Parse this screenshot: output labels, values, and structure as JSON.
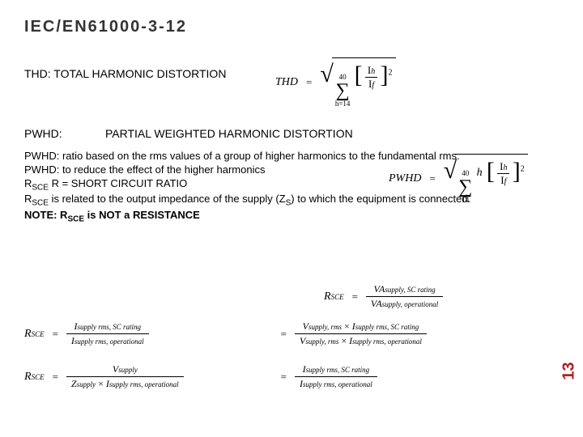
{
  "title": "IEC/EN61000-3-12",
  "thd_label": "THD: TOTAL HARMONIC DISTORTION",
  "pwhd_short": "PWHD:",
  "pwhd_long": "PARTIAL WEIGHTED HARMONIC DISTORTION",
  "body": {
    "line1": "PWHD: ratio based on the rms values of a group of higher harmonics to the fundamental rms.",
    "line2": "PWHD: to reduce the effect of the higher harmonics",
    "line3a": "R",
    "line3b": " R = SHORT CIRCUIT RATIO",
    "line4a": "R",
    "line4b": " is related to the output impedance of the supply (Z",
    "line4c": ") to which the equipment is connected.",
    "note_label": "NOTE:  R",
    "note_tail": "  is NOT a RESISTANCE",
    "sce": "SCE",
    "s": "S"
  },
  "thd_formula": {
    "lhs": "THD",
    "sum_top": "40",
    "sum_bot": "h=14",
    "frac_num": "I",
    "frac_num_sub": "h",
    "frac_den": "I",
    "frac_den_sub": "f"
  },
  "pwhd_formula": {
    "lhs": "PWHD",
    "sum_top": "40",
    "sum_bot": "14",
    "coef": "h",
    "frac_num": "I",
    "frac_num_sub": "h",
    "frac_den": "I",
    "frac_den_sub": "f"
  },
  "rsce_left": {
    "lhs": "R",
    "lhs_sub": "SCE",
    "r1_num": "I",
    "r1_num_sub": "supply rms, SC rating",
    "r1_den": "I",
    "r1_den_sub": "supply rms, operational",
    "r2_num": "V",
    "r2_num_sub": "supply",
    "r2_den_a": "Z",
    "r2_den_a_sub": "supply",
    "r2_den_b": "I",
    "r2_den_b_sub": "supply rms, operational"
  },
  "rsce_right": {
    "lhs": "R",
    "lhs_sub": "SCE",
    "r1_num": "VA",
    "r1_num_sub": "supply, SC rating",
    "r1_den": "VA",
    "r1_den_sub": "supply, operational",
    "r2_num_a": "V",
    "r2_num_a_sub": "supply, rms",
    "r2_num_b": "I",
    "r2_num_b_sub": "supply rms, SC rating",
    "r2_den_a": "V",
    "r2_den_a_sub": "supply, rms",
    "r2_den_b": "I",
    "r2_den_b_sub": "supply rms, operational",
    "r3_num": "I",
    "r3_num_sub": "supply rms, SC rating",
    "r3_den": "I",
    "r3_den_sub": "supply rms, operational"
  },
  "page_num": "13",
  "colors": {
    "title": "#333333",
    "pagenum": "#b02121"
  }
}
